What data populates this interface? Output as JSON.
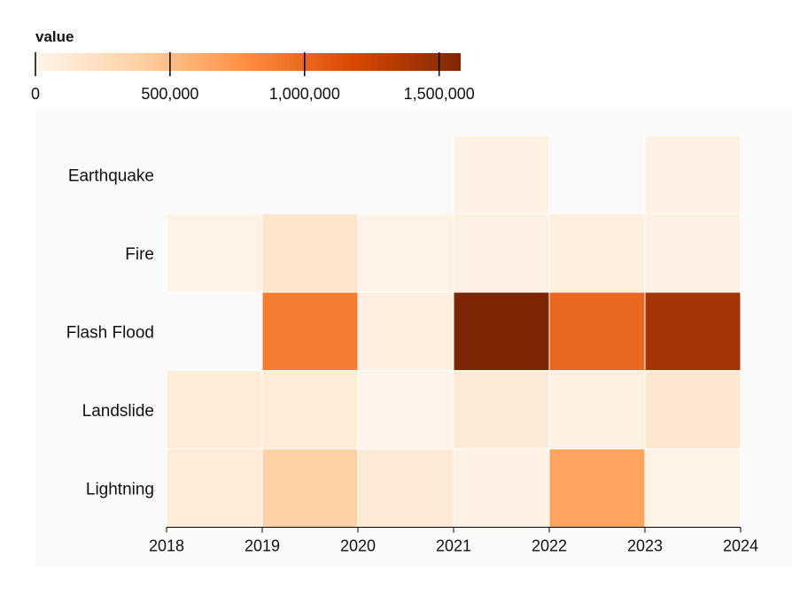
{
  "chart_data": {
    "type": "heatmap",
    "title": "",
    "xlabel": "",
    "ylabel": "",
    "legend": {
      "title": "value",
      "domain": [
        0,
        1580000
      ],
      "ticks": [
        0,
        500000,
        1000000,
        1500000
      ],
      "tick_labels": [
        "0",
        "500,000",
        "1,000,000",
        "1,500,000"
      ],
      "colors": [
        "#fff5eb",
        "#fdd0a2",
        "#fd8d3c",
        "#d94801",
        "#7f2704"
      ]
    },
    "x_ticks": [
      "2018",
      "2019",
      "2020",
      "2021",
      "2022",
      "2023",
      "2024"
    ],
    "categories": [
      "Earthquake",
      "Fire",
      "Flash Flood",
      "Landslide",
      "Lightning"
    ],
    "background": "#fafafa",
    "cells": [
      {
        "category": "Earthquake",
        "start": 2021,
        "end": 2022,
        "value": 30000
      },
      {
        "category": "Earthquake",
        "start": 2023,
        "end": 2024,
        "value": 30000
      },
      {
        "category": "Fire",
        "start": 2018,
        "end": 2019,
        "value": 20000
      },
      {
        "category": "Fire",
        "start": 2019,
        "end": 2020,
        "value": 160000
      },
      {
        "category": "Fire",
        "start": 2020,
        "end": 2021,
        "value": 20000
      },
      {
        "category": "Fire",
        "start": 2021,
        "end": 2022,
        "value": 30000
      },
      {
        "category": "Fire",
        "start": 2022,
        "end": 2023,
        "value": 60000
      },
      {
        "category": "Fire",
        "start": 2023,
        "end": 2024,
        "value": 40000
      },
      {
        "category": "Flash Flood",
        "start": 2019,
        "end": 2020,
        "value": 880000
      },
      {
        "category": "Flash Flood",
        "start": 2020,
        "end": 2021,
        "value": 60000
      },
      {
        "category": "Flash Flood",
        "start": 2021,
        "end": 2022,
        "value": 1580000
      },
      {
        "category": "Flash Flood",
        "start": 2022,
        "end": 2023,
        "value": 1000000
      },
      {
        "category": "Flash Flood",
        "start": 2023,
        "end": 2024,
        "value": 1420000
      },
      {
        "category": "Landslide",
        "start": 2018,
        "end": 2019,
        "value": 90000
      },
      {
        "category": "Landslide",
        "start": 2019,
        "end": 2020,
        "value": 90000
      },
      {
        "category": "Landslide",
        "start": 2020,
        "end": 2021,
        "value": 10000
      },
      {
        "category": "Landslide",
        "start": 2021,
        "end": 2022,
        "value": 110000
      },
      {
        "category": "Landslide",
        "start": 2022,
        "end": 2023,
        "value": 50000
      },
      {
        "category": "Landslide",
        "start": 2023,
        "end": 2024,
        "value": 140000
      },
      {
        "category": "Lightning",
        "start": 2018,
        "end": 2019,
        "value": 100000
      },
      {
        "category": "Lightning",
        "start": 2019,
        "end": 2020,
        "value": 370000
      },
      {
        "category": "Lightning",
        "start": 2020,
        "end": 2021,
        "value": 120000
      },
      {
        "category": "Lightning",
        "start": 2021,
        "end": 2022,
        "value": 30000
      },
      {
        "category": "Lightning",
        "start": 2022,
        "end": 2023,
        "value": 650000
      },
      {
        "category": "Lightning",
        "start": 2023,
        "end": 2024,
        "value": 20000
      }
    ]
  }
}
